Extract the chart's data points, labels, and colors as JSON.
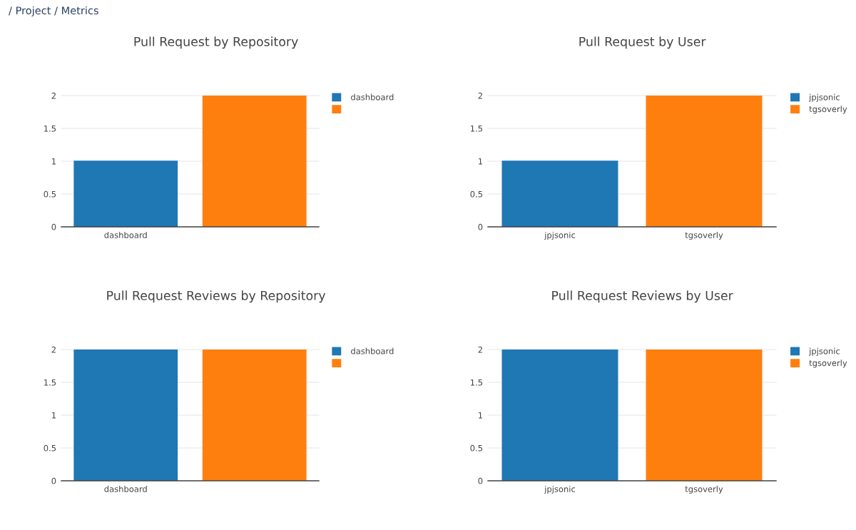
{
  "chart_data": [
    {
      "type": "bar",
      "title": "Pull Request by Repository",
      "categories": [
        "dashboard",
        null
      ],
      "series": [
        {
          "name": "dashboard",
          "color": "#1f77b4",
          "values": [
            1,
            null
          ]
        },
        {
          "color": "#ff7f0e",
          "values": [
            null,
            2
          ]
        }
      ],
      "ylim": [
        0,
        2
      ],
      "yticks": [
        0,
        0.5,
        1,
        1.5,
        2
      ],
      "grid": "y",
      "legend": "top right",
      "annotations": [
        "/ Project / Metrics"
      ]
    },
    {
      "type": "bar",
      "title": "Pull Request by User",
      "categories": [
        "jpjsonic",
        "tgsoverly"
      ],
      "series": [
        {
          "name": "jpjsonic",
          "color": "#1f77b4",
          "values": [
            1,
            null
          ]
        },
        {
          "name": "tgsoverly",
          "color": "#ff7f0e",
          "values": [
            null,
            2
          ]
        }
      ],
      "ylim": [
        0,
        2
      ],
      "yticks": [
        0,
        0.5,
        1,
        1.5,
        2
      ],
      "grid": "y",
      "legend": "top right"
    },
    {
      "type": "bar",
      "title": "Pull Request Reviews by Repository",
      "categories": [
        "dashboard",
        null
      ],
      "series": [
        {
          "name": "dashboard",
          "color": "#1f77b4",
          "values": [
            2,
            null
          ]
        },
        {
          "color": "#ff7f0e",
          "values": [
            null,
            2
          ]
        }
      ],
      "ylim": [
        0,
        2
      ],
      "yticks": [
        0,
        0.5,
        1,
        1.5,
        2
      ],
      "grid": "y",
      "legend": "top right"
    },
    {
      "type": "bar",
      "title": "Pull Request Reviews by User",
      "categories": [
        "jpjsonic",
        "tgsoverly"
      ],
      "series": [
        {
          "name": "jpjsonic",
          "color": "#1f77b4",
          "values": [
            2,
            null
          ]
        },
        {
          "name": "tgsoverly",
          "color": "#ff7f0e",
          "values": [
            null,
            2
          ]
        }
      ],
      "ylim": [
        0,
        2
      ],
      "yticks": [
        0,
        0.5,
        1,
        1.5,
        2
      ],
      "grid": "y",
      "legend": "top right"
    }
  ]
}
